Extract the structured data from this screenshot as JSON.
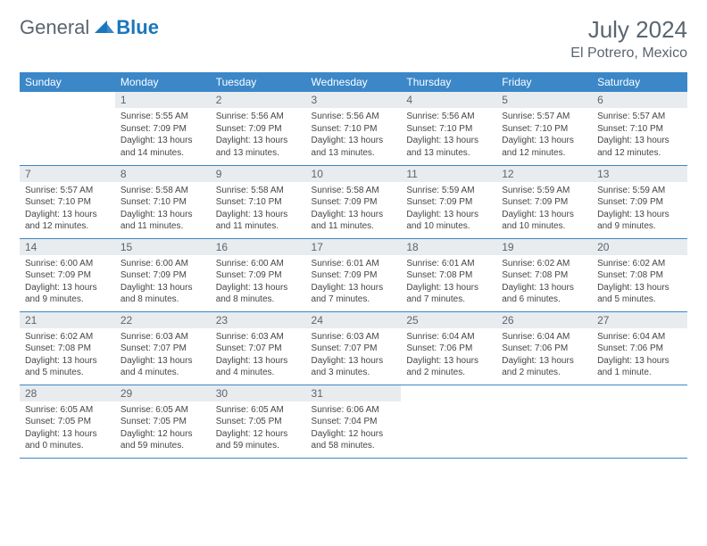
{
  "brand": {
    "text_general": "General",
    "text_blue": "Blue"
  },
  "title": "July 2024",
  "location": "El Potrero, Mexico",
  "colors": {
    "header_bg": "#3b87c8",
    "header_text": "#ffffff",
    "daynum_bg": "#e8ecef",
    "daynum_text": "#5a6570",
    "border": "#3b87c8",
    "body_text": "#454545",
    "title_text": "#5a6570",
    "logo_gray": "#5a6570",
    "logo_blue": "#1b77bb"
  },
  "day_headers": [
    "Sunday",
    "Monday",
    "Tuesday",
    "Wednesday",
    "Thursday",
    "Friday",
    "Saturday"
  ],
  "labels": {
    "sunrise": "Sunrise:",
    "sunset": "Sunset:",
    "daylight": "Daylight:"
  },
  "weeks": [
    [
      null,
      {
        "n": "1",
        "sunrise": "5:55 AM",
        "sunset": "7:09 PM",
        "daylight": "13 hours and 14 minutes."
      },
      {
        "n": "2",
        "sunrise": "5:56 AM",
        "sunset": "7:09 PM",
        "daylight": "13 hours and 13 minutes."
      },
      {
        "n": "3",
        "sunrise": "5:56 AM",
        "sunset": "7:10 PM",
        "daylight": "13 hours and 13 minutes."
      },
      {
        "n": "4",
        "sunrise": "5:56 AM",
        "sunset": "7:10 PM",
        "daylight": "13 hours and 13 minutes."
      },
      {
        "n": "5",
        "sunrise": "5:57 AM",
        "sunset": "7:10 PM",
        "daylight": "13 hours and 12 minutes."
      },
      {
        "n": "6",
        "sunrise": "5:57 AM",
        "sunset": "7:10 PM",
        "daylight": "13 hours and 12 minutes."
      }
    ],
    [
      {
        "n": "7",
        "sunrise": "5:57 AM",
        "sunset": "7:10 PM",
        "daylight": "13 hours and 12 minutes."
      },
      {
        "n": "8",
        "sunrise": "5:58 AM",
        "sunset": "7:10 PM",
        "daylight": "13 hours and 11 minutes."
      },
      {
        "n": "9",
        "sunrise": "5:58 AM",
        "sunset": "7:10 PM",
        "daylight": "13 hours and 11 minutes."
      },
      {
        "n": "10",
        "sunrise": "5:58 AM",
        "sunset": "7:09 PM",
        "daylight": "13 hours and 11 minutes."
      },
      {
        "n": "11",
        "sunrise": "5:59 AM",
        "sunset": "7:09 PM",
        "daylight": "13 hours and 10 minutes."
      },
      {
        "n": "12",
        "sunrise": "5:59 AM",
        "sunset": "7:09 PM",
        "daylight": "13 hours and 10 minutes."
      },
      {
        "n": "13",
        "sunrise": "5:59 AM",
        "sunset": "7:09 PM",
        "daylight": "13 hours and 9 minutes."
      }
    ],
    [
      {
        "n": "14",
        "sunrise": "6:00 AM",
        "sunset": "7:09 PM",
        "daylight": "13 hours and 9 minutes."
      },
      {
        "n": "15",
        "sunrise": "6:00 AM",
        "sunset": "7:09 PM",
        "daylight": "13 hours and 8 minutes."
      },
      {
        "n": "16",
        "sunrise": "6:00 AM",
        "sunset": "7:09 PM",
        "daylight": "13 hours and 8 minutes."
      },
      {
        "n": "17",
        "sunrise": "6:01 AM",
        "sunset": "7:09 PM",
        "daylight": "13 hours and 7 minutes."
      },
      {
        "n": "18",
        "sunrise": "6:01 AM",
        "sunset": "7:08 PM",
        "daylight": "13 hours and 7 minutes."
      },
      {
        "n": "19",
        "sunrise": "6:02 AM",
        "sunset": "7:08 PM",
        "daylight": "13 hours and 6 minutes."
      },
      {
        "n": "20",
        "sunrise": "6:02 AM",
        "sunset": "7:08 PM",
        "daylight": "13 hours and 5 minutes."
      }
    ],
    [
      {
        "n": "21",
        "sunrise": "6:02 AM",
        "sunset": "7:08 PM",
        "daylight": "13 hours and 5 minutes."
      },
      {
        "n": "22",
        "sunrise": "6:03 AM",
        "sunset": "7:07 PM",
        "daylight": "13 hours and 4 minutes."
      },
      {
        "n": "23",
        "sunrise": "6:03 AM",
        "sunset": "7:07 PM",
        "daylight": "13 hours and 4 minutes."
      },
      {
        "n": "24",
        "sunrise": "6:03 AM",
        "sunset": "7:07 PM",
        "daylight": "13 hours and 3 minutes."
      },
      {
        "n": "25",
        "sunrise": "6:04 AM",
        "sunset": "7:06 PM",
        "daylight": "13 hours and 2 minutes."
      },
      {
        "n": "26",
        "sunrise": "6:04 AM",
        "sunset": "7:06 PM",
        "daylight": "13 hours and 2 minutes."
      },
      {
        "n": "27",
        "sunrise": "6:04 AM",
        "sunset": "7:06 PM",
        "daylight": "13 hours and 1 minute."
      }
    ],
    [
      {
        "n": "28",
        "sunrise": "6:05 AM",
        "sunset": "7:05 PM",
        "daylight": "13 hours and 0 minutes."
      },
      {
        "n": "29",
        "sunrise": "6:05 AM",
        "sunset": "7:05 PM",
        "daylight": "12 hours and 59 minutes."
      },
      {
        "n": "30",
        "sunrise": "6:05 AM",
        "sunset": "7:05 PM",
        "daylight": "12 hours and 59 minutes."
      },
      {
        "n": "31",
        "sunrise": "6:06 AM",
        "sunset": "7:04 PM",
        "daylight": "12 hours and 58 minutes."
      },
      null,
      null,
      null
    ]
  ]
}
